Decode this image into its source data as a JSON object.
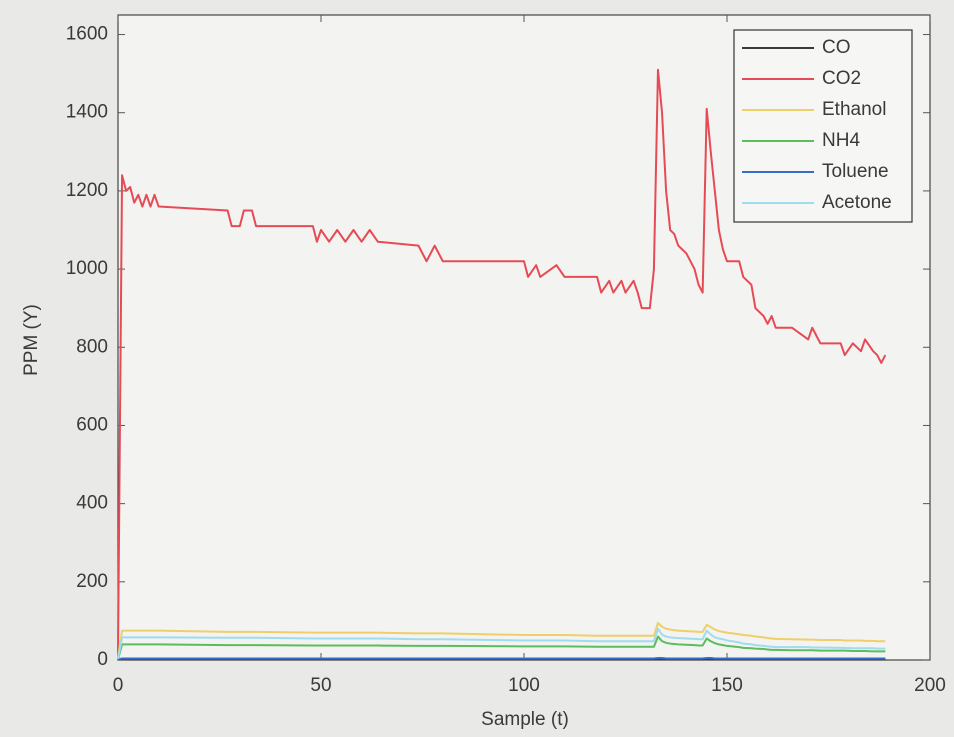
{
  "chart_data": {
    "type": "line",
    "xlabel": "Sample (t)",
    "ylabel": "PPM (Y)",
    "xlim": [
      0,
      200
    ],
    "ylim": [
      0,
      1650
    ],
    "xticks": [
      0,
      50,
      100,
      150,
      200
    ],
    "yticks": [
      0,
      200,
      400,
      600,
      800,
      1000,
      1200,
      1400,
      1600
    ],
    "legend": "northeast",
    "x": [
      0,
      1,
      2,
      3,
      4,
      5,
      6,
      7,
      8,
      9,
      10,
      27,
      28,
      30,
      31,
      33,
      34,
      48,
      49,
      50,
      52,
      54,
      56,
      58,
      60,
      62,
      64,
      74,
      76,
      78,
      80,
      100,
      101,
      103,
      104,
      108,
      110,
      118,
      119,
      121,
      122,
      124,
      125,
      127,
      128,
      129,
      131,
      132,
      133,
      134,
      135,
      136,
      137,
      138,
      140,
      142,
      143,
      144,
      145,
      146,
      147,
      148,
      149,
      150,
      153,
      154,
      156,
      157,
      159,
      160,
      161,
      162,
      166,
      170,
      171,
      173,
      178,
      179,
      181,
      183,
      184,
      186,
      187,
      188,
      189
    ],
    "series": [
      {
        "name": "CO",
        "color": "#3a3a3a",
        "values": [
          1,
          2,
          2,
          2,
          2,
          2,
          2,
          2,
          2,
          2,
          2,
          2,
          2,
          2,
          2,
          2,
          2,
          2,
          2,
          2,
          2,
          2,
          2,
          2,
          2,
          2,
          2,
          2,
          2,
          2,
          2,
          2,
          2,
          2,
          2,
          2,
          2,
          2,
          2,
          2,
          2,
          2,
          2,
          2,
          2,
          2,
          2,
          2,
          3,
          3,
          2,
          2,
          2,
          2,
          2,
          2,
          2,
          2,
          3,
          3,
          2,
          2,
          2,
          2,
          2,
          2,
          2,
          2,
          2,
          2,
          2,
          2,
          2,
          2,
          2,
          2,
          2,
          2,
          2,
          2,
          2,
          2,
          2,
          2,
          2
        ]
      },
      {
        "name": "CO2",
        "color": "#e64b55",
        "values": [
          10,
          1240,
          1200,
          1210,
          1170,
          1190,
          1160,
          1190,
          1160,
          1190,
          1160,
          1150,
          1110,
          1110,
          1150,
          1150,
          1110,
          1110,
          1070,
          1100,
          1070,
          1100,
          1070,
          1100,
          1070,
          1100,
          1070,
          1060,
          1020,
          1060,
          1020,
          1020,
          980,
          1010,
          980,
          1010,
          980,
          980,
          940,
          970,
          940,
          970,
          940,
          970,
          940,
          900,
          900,
          1000,
          1510,
          1400,
          1200,
          1100,
          1090,
          1060,
          1040,
          1000,
          960,
          940,
          1410,
          1300,
          1200,
          1100,
          1050,
          1020,
          1020,
          980,
          960,
          900,
          880,
          860,
          880,
          850,
          850,
          820,
          850,
          810,
          810,
          780,
          810,
          790,
          820,
          790,
          780,
          760,
          780
        ]
      },
      {
        "name": "Ethanol",
        "color": "#eecf6a",
        "values": [
          5,
          75,
          75,
          75,
          75,
          75,
          75,
          75,
          75,
          75,
          75,
          72,
          72,
          72,
          72,
          72,
          72,
          70,
          70,
          70,
          70,
          70,
          70,
          70,
          70,
          70,
          70,
          68,
          68,
          68,
          68,
          64,
          64,
          64,
          64,
          64,
          64,
          62,
          62,
          62,
          62,
          62,
          62,
          62,
          62,
          62,
          62,
          62,
          95,
          85,
          80,
          78,
          76,
          75,
          74,
          73,
          72,
          72,
          90,
          84,
          78,
          74,
          72,
          70,
          66,
          64,
          62,
          60,
          58,
          56,
          55,
          54,
          53,
          52,
          52,
          51,
          51,
          50,
          50,
          50,
          49,
          49,
          48,
          48,
          48
        ]
      },
      {
        "name": "NH4",
        "color": "#5cbd5c",
        "values": [
          2,
          40,
          40,
          40,
          40,
          40,
          40,
          40,
          40,
          40,
          40,
          38,
          38,
          38,
          38,
          38,
          38,
          37,
          37,
          37,
          37,
          37,
          37,
          37,
          37,
          37,
          37,
          36,
          36,
          36,
          36,
          35,
          35,
          35,
          35,
          35,
          35,
          34,
          34,
          34,
          34,
          34,
          34,
          34,
          34,
          34,
          34,
          34,
          60,
          48,
          44,
          42,
          41,
          40,
          39,
          38,
          37,
          37,
          55,
          48,
          43,
          40,
          38,
          36,
          33,
          31,
          30,
          29,
          28,
          27,
          26,
          26,
          25,
          25,
          25,
          24,
          24,
          24,
          23,
          23,
          23,
          22,
          22,
          22,
          22
        ]
      },
      {
        "name": "Toluene",
        "color": "#3a6cc4",
        "values": [
          1,
          4,
          4,
          4,
          4,
          4,
          4,
          4,
          4,
          4,
          4,
          4,
          4,
          4,
          4,
          4,
          4,
          4,
          4,
          4,
          4,
          4,
          4,
          4,
          4,
          4,
          4,
          4,
          4,
          4,
          4,
          4,
          4,
          4,
          4,
          4,
          4,
          4,
          4,
          4,
          4,
          4,
          4,
          4,
          4,
          4,
          4,
          4,
          5,
          5,
          4,
          4,
          4,
          4,
          4,
          4,
          4,
          4,
          5,
          5,
          4,
          4,
          4,
          4,
          4,
          4,
          4,
          4,
          4,
          4,
          4,
          4,
          4,
          4,
          4,
          4,
          4,
          4,
          4,
          4,
          4,
          4,
          4,
          4,
          4
        ]
      },
      {
        "name": "Acetone",
        "color": "#9edcee",
        "values": [
          3,
          58,
          58,
          58,
          58,
          58,
          58,
          58,
          58,
          58,
          58,
          57,
          57,
          57,
          57,
          57,
          57,
          55,
          55,
          55,
          55,
          55,
          55,
          55,
          55,
          55,
          55,
          53,
          53,
          53,
          53,
          50,
          50,
          50,
          50,
          50,
          50,
          48,
          48,
          48,
          48,
          48,
          48,
          48,
          48,
          48,
          48,
          48,
          80,
          65,
          60,
          58,
          57,
          56,
          55,
          54,
          53,
          53,
          75,
          65,
          58,
          55,
          53,
          50,
          45,
          42,
          40,
          38,
          36,
          35,
          34,
          33,
          33,
          33,
          32,
          32,
          31,
          31,
          30,
          30,
          30,
          30,
          29,
          29,
          29
        ]
      }
    ]
  }
}
